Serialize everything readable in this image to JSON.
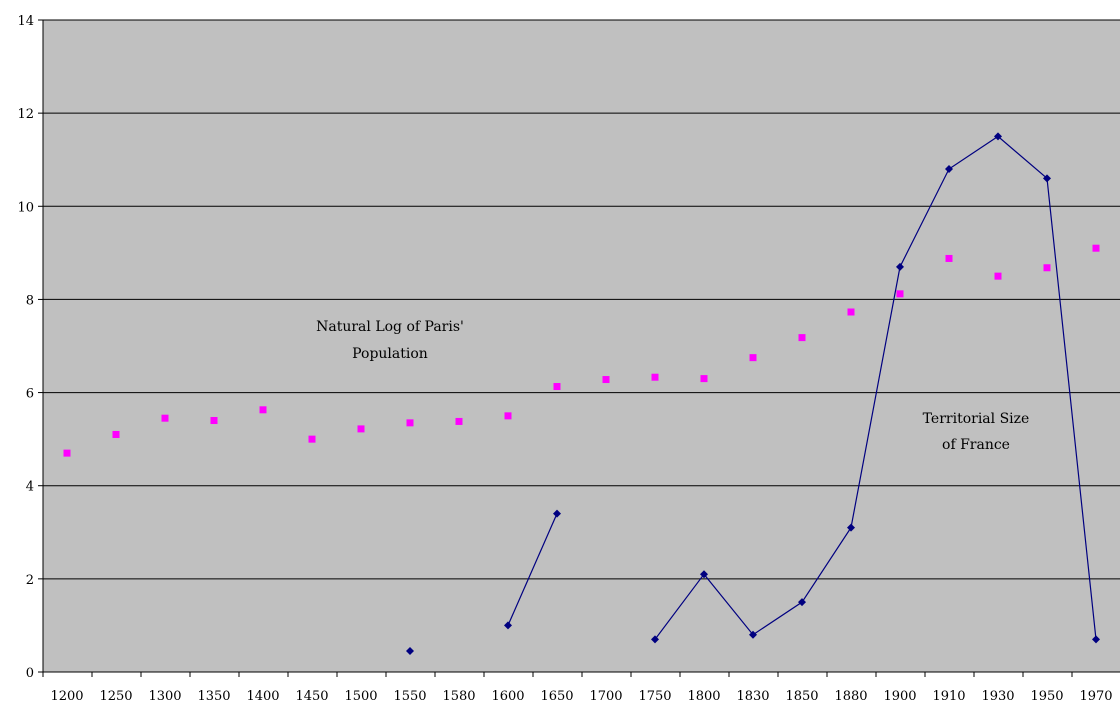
{
  "chart_data": {
    "type": "line",
    "categories": [
      "1200",
      "1250",
      "1300",
      "1350",
      "1400",
      "1450",
      "1500",
      "1550",
      "1580",
      "1600",
      "1650",
      "1700",
      "1750",
      "1800",
      "1830",
      "1850",
      "1880",
      "1900",
      "1910",
      "1930",
      "1950",
      "1970"
    ],
    "ylim": [
      0,
      14
    ],
    "yticks": [
      0,
      2,
      4,
      6,
      8,
      10,
      12,
      14
    ],
    "grid": true,
    "colors": {
      "plot_bg": "#c0c0c0",
      "population": "#ff00ff",
      "territory": "#000080",
      "grid": "#000000"
    },
    "series": [
      {
        "key": "population",
        "style": "markers",
        "values": [
          4.7,
          5.1,
          5.45,
          5.4,
          5.63,
          5.0,
          5.22,
          5.35,
          5.38,
          5.5,
          6.13,
          6.28,
          6.33,
          6.3,
          6.75,
          7.18,
          7.73,
          8.12,
          8.88,
          8.5,
          8.68,
          9.1
        ]
      },
      {
        "key": "territory",
        "style": "line-markers",
        "values": [
          null,
          null,
          null,
          null,
          null,
          null,
          null,
          0.45,
          null,
          1.0,
          3.4,
          null,
          0.7,
          2.1,
          0.8,
          1.5,
          3.1,
          8.7,
          10.8,
          11.5,
          10.6,
          0.7
        ]
      }
    ],
    "annotations": [
      {
        "key": "population",
        "lines": [
          "Natural Log of Paris'",
          "Population"
        ]
      },
      {
        "key": "territory",
        "lines": [
          "Territorial Size",
          "of France"
        ]
      }
    ]
  }
}
